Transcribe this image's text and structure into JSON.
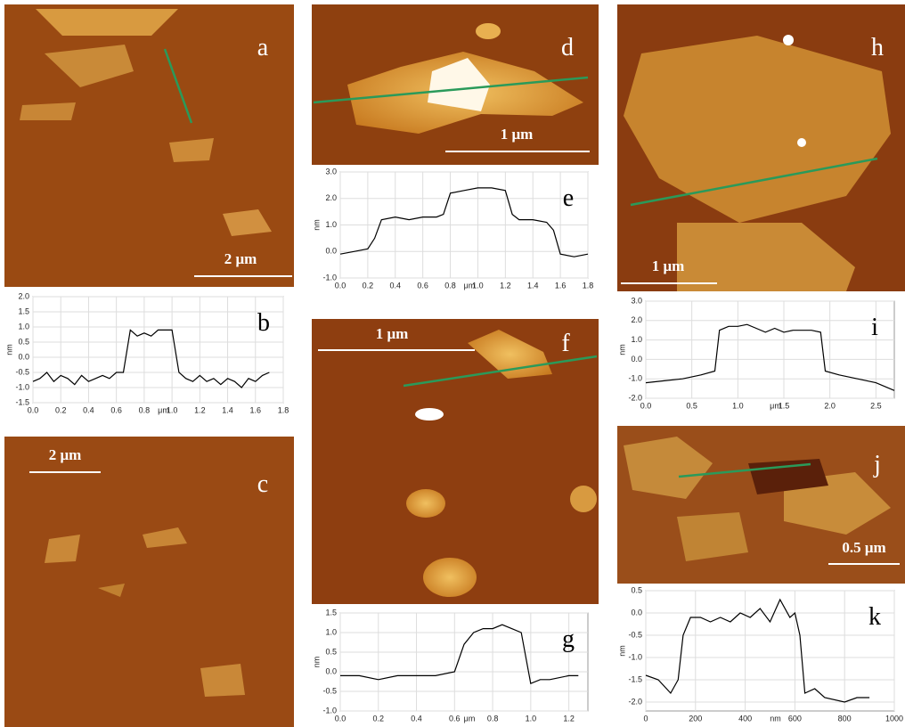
{
  "panels": [
    {
      "label": "a",
      "scale_bar": "2 μm"
    },
    {
      "label": "d",
      "scale_bar": "1 μm"
    },
    {
      "label": "h",
      "scale_bar": "1 μm"
    },
    {
      "label": "c",
      "scale_bar": "2 μm"
    },
    {
      "label": "f",
      "scale_bar": "1 μm"
    },
    {
      "label": "j",
      "scale_bar": "0.5 μm"
    }
  ],
  "chart_data": [
    {
      "type": "line",
      "label": "b",
      "y_label": "nm",
      "x_label": "μm",
      "color": "#000000",
      "grid": true,
      "x": [
        0,
        0.05,
        0.1,
        0.15,
        0.2,
        0.25,
        0.3,
        0.35,
        0.4,
        0.45,
        0.5,
        0.55,
        0.6,
        0.65,
        0.7,
        0.75,
        0.8,
        0.85,
        0.9,
        0.95,
        1.0,
        1.05,
        1.1,
        1.15,
        1.2,
        1.25,
        1.3,
        1.35,
        1.4,
        1.45,
        1.5,
        1.55,
        1.6,
        1.65,
        1.7
      ],
      "values": [
        -0.8,
        -0.7,
        -0.5,
        -0.8,
        -0.6,
        -0.7,
        -0.9,
        -0.6,
        -0.8,
        -0.7,
        -0.6,
        -0.7,
        -0.5,
        -0.5,
        0.9,
        0.7,
        0.8,
        0.7,
        0.9,
        0.9,
        0.9,
        -0.5,
        -0.7,
        -0.8,
        -0.6,
        -0.8,
        -0.7,
        -0.9,
        -0.7,
        -0.8,
        -1.0,
        -0.7,
        -0.8,
        -0.6,
        -0.5
      ],
      "xlim": [
        0,
        1.8
      ],
      "ylim": [
        -1.5,
        2.0
      ],
      "xticks": [
        {
          "value": 0,
          "label": "0.0"
        },
        0.2,
        0.4,
        0.6,
        0.8,
        {
          "value": 1,
          "label": "1.0"
        },
        1.2,
        1.4,
        1.6,
        1.8
      ],
      "yticks": [
        {
          "value": 2,
          "label": "2.0"
        },
        1.5,
        {
          "value": 1,
          "label": "1.0"
        },
        0.5,
        {
          "value": 0,
          "label": "0.0"
        },
        -0.5,
        {
          "value": -1,
          "label": "-1.0"
        },
        -1.5
      ]
    },
    {
      "type": "line",
      "label": "e",
      "y_label": "nm",
      "x_label": "μm",
      "color": "#000000",
      "grid": true,
      "x": [
        0,
        0.1,
        0.2,
        0.25,
        0.3,
        0.4,
        0.5,
        0.6,
        0.7,
        0.75,
        0.8,
        0.9,
        1.0,
        1.1,
        1.2,
        1.25,
        1.3,
        1.4,
        1.5,
        1.55,
        1.6,
        1.7,
        1.8
      ],
      "values": [
        -0.1,
        0.0,
        0.1,
        0.5,
        1.2,
        1.3,
        1.2,
        1.3,
        1.3,
        1.4,
        2.2,
        2.3,
        2.4,
        2.4,
        2.3,
        1.4,
        1.2,
        1.2,
        1.1,
        0.8,
        -0.1,
        -0.2,
        -0.1
      ],
      "xlim": [
        0,
        1.8
      ],
      "ylim": [
        -1,
        3
      ],
      "xticks": [
        {
          "value": 0,
          "label": "0.0"
        },
        0.2,
        0.4,
        0.6,
        0.8,
        {
          "value": 1,
          "label": "1.0"
        },
        1.2,
        1.4,
        1.6,
        1.8
      ],
      "yticks": [
        {
          "value": 3,
          "label": "3.0"
        },
        {
          "value": 2,
          "label": "2.0"
        },
        {
          "value": 1,
          "label": "1.0"
        },
        {
          "value": 0,
          "label": "0.0"
        },
        {
          "value": -1,
          "label": "-1.0"
        }
      ]
    },
    {
      "type": "line",
      "label": "g",
      "y_label": "nm",
      "x_label": "μm",
      "color": "#000000",
      "grid": true,
      "x": [
        0,
        0.1,
        0.2,
        0.3,
        0.4,
        0.5,
        0.6,
        0.65,
        0.7,
        0.75,
        0.8,
        0.85,
        0.9,
        0.95,
        1.0,
        1.05,
        1.1,
        1.2,
        1.25
      ],
      "values": [
        -0.1,
        -0.1,
        -0.2,
        -0.1,
        -0.1,
        -0.1,
        0.0,
        0.7,
        1.0,
        1.1,
        1.1,
        1.2,
        1.1,
        1.0,
        -0.3,
        -0.2,
        -0.2,
        -0.1,
        -0.1
      ],
      "xlim": [
        0,
        1.3
      ],
      "ylim": [
        -1,
        1.5
      ],
      "xticks": [
        {
          "value": 0,
          "label": "0.0"
        },
        0.2,
        0.4,
        0.6,
        0.8,
        {
          "value": 1,
          "label": "1.0"
        },
        1.2
      ],
      "yticks": [
        1.5,
        {
          "value": 1,
          "label": "1.0"
        },
        0.5,
        {
          "value": 0,
          "label": "0.0"
        },
        -0.5,
        {
          "value": -1,
          "label": "-1.0"
        }
      ]
    },
    {
      "type": "line",
      "label": "i",
      "y_label": "nm",
      "x_label": "μm",
      "color": "#000000",
      "grid": true,
      "x": [
        0,
        0.2,
        0.4,
        0.6,
        0.75,
        0.8,
        0.9,
        1.0,
        1.1,
        1.2,
        1.3,
        1.4,
        1.5,
        1.6,
        1.7,
        1.8,
        1.9,
        1.95,
        2.1,
        2.3,
        2.5,
        2.7
      ],
      "values": [
        -1.2,
        -1.1,
        -1.0,
        -0.8,
        -0.6,
        1.5,
        1.7,
        1.7,
        1.8,
        1.6,
        1.4,
        1.6,
        1.4,
        1.5,
        1.5,
        1.5,
        1.4,
        -0.6,
        -0.8,
        -1.0,
        -1.2,
        -1.6
      ],
      "xlim": [
        0,
        2.7
      ],
      "ylim": [
        -2,
        3
      ],
      "xticks": [
        {
          "value": 0,
          "label": "0.0"
        },
        0.5,
        {
          "value": 1,
          "label": "1.0"
        },
        1.5,
        {
          "value": 2,
          "label": "2.0"
        },
        2.5
      ],
      "yticks": [
        {
          "value": 3,
          "label": "3.0"
        },
        {
          "value": 2,
          "label": "2.0"
        },
        {
          "value": 1,
          "label": "1.0"
        },
        {
          "value": 0,
          "label": "0.0"
        },
        {
          "value": -1,
          "label": "-1.0"
        },
        {
          "value": -2,
          "label": "-2.0"
        }
      ]
    },
    {
      "type": "line",
      "label": "k",
      "y_label": "nm",
      "x_label": "nm",
      "color": "#000000",
      "grid": true,
      "x": [
        0,
        50,
        100,
        130,
        150,
        180,
        220,
        260,
        300,
        340,
        380,
        420,
        460,
        500,
        540,
        580,
        600,
        620,
        640,
        680,
        720,
        800,
        850,
        900
      ],
      "values": [
        -1.4,
        -1.5,
        -1.8,
        -1.5,
        -0.5,
        -0.1,
        -0.1,
        -0.2,
        -0.1,
        -0.2,
        0.0,
        -0.1,
        0.1,
        -0.2,
        0.3,
        -0.1,
        0.0,
        -0.5,
        -1.8,
        -1.7,
        -1.9,
        -2.0,
        -1.9,
        -1.9
      ],
      "xlim": [
        0,
        1000
      ],
      "ylim": [
        -2.2,
        0.5
      ],
      "xticks": [
        0,
        200,
        400,
        600,
        800,
        1000
      ],
      "yticks": [
        0.5,
        {
          "value": 0,
          "label": "0.0"
        },
        -0.5,
        {
          "value": -1,
          "label": "-1.0"
        },
        -1.5,
        {
          "value": -2,
          "label": "-2.0"
        }
      ]
    }
  ]
}
